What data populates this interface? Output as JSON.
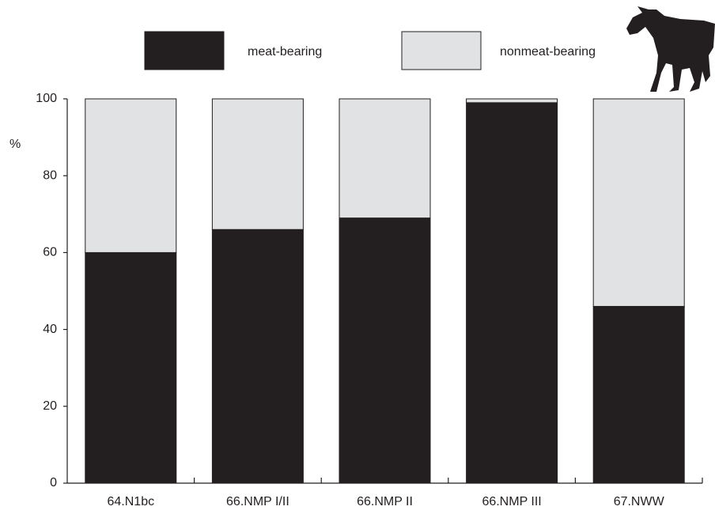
{
  "chart_data": {
    "type": "stacked_bar",
    "y_label": "%",
    "categories": [
      "64.N1bc",
      "66.NMP I/II",
      "66.NMP II",
      "66.NMP III",
      "67.NWW"
    ],
    "series": [
      {
        "name": "meat-bearing",
        "color": "#231f20",
        "values": [
          60,
          66,
          69,
          99,
          46
        ]
      },
      {
        "name": "nonmeat-bearing",
        "color": "#e1e2e4",
        "values": [
          40,
          34,
          31,
          1,
          54
        ]
      }
    ],
    "ylim": [
      0,
      100
    ],
    "yticks": [
      0,
      20,
      40,
      60,
      80,
      100
    ],
    "grid": false
  }
}
